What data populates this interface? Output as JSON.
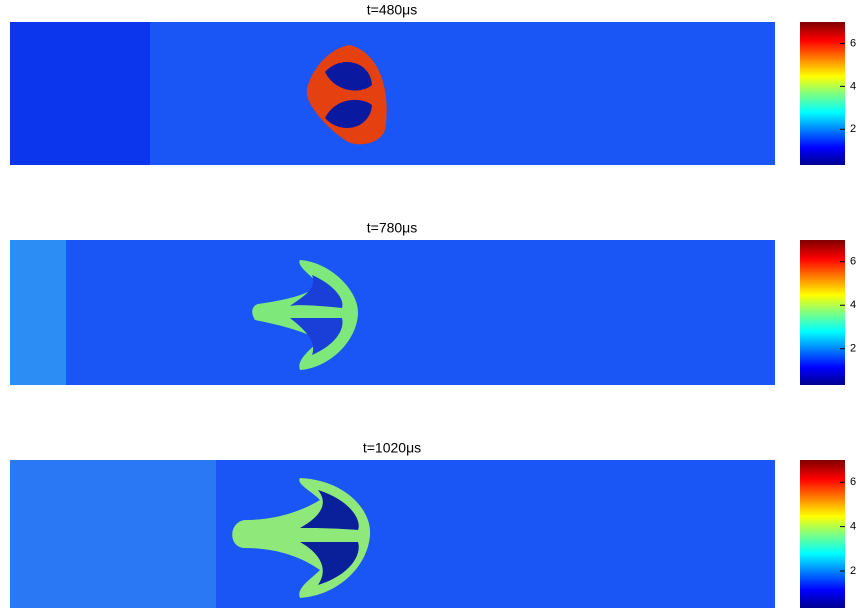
{
  "panels": [
    {
      "title": "t=480μs",
      "colorbar_ticks": [
        "6",
        "4",
        "2"
      ]
    },
    {
      "title": "t=780μs",
      "colorbar_ticks": [
        "6",
        "4",
        "2"
      ]
    },
    {
      "title": "t=1020μs",
      "colorbar_ticks": [
        "6",
        "4",
        "2"
      ]
    }
  ]
}
